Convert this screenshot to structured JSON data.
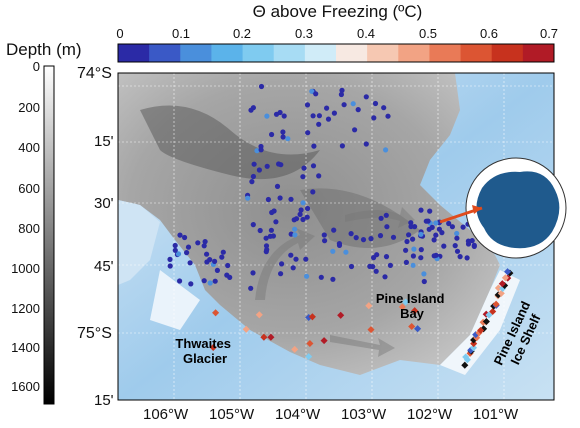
{
  "colorbar": {
    "title": "Θ above Freezing (ºC)",
    "ticks": [
      "0",
      "0.1",
      "0.2",
      "0.3",
      "0.4",
      "0.5",
      "0.6",
      "0.7"
    ],
    "colors": [
      "#2b2aa6",
      "#3a59c6",
      "#4a8fdc",
      "#5bb3ea",
      "#7fcbf0",
      "#a7dcf4",
      "#d0ecf8",
      "#f7e9e2",
      "#f6c8b2",
      "#f2a384",
      "#e97a57",
      "#dc5533",
      "#c7321e",
      "#b11b26"
    ]
  },
  "depthbar": {
    "title": "Depth (m)",
    "ticks": [
      "0",
      "200",
      "400",
      "600",
      "800",
      "1000",
      "1200",
      "1400",
      "1600"
    ]
  },
  "lat_labels": [
    "74°S",
    "15'",
    "30'",
    "45'",
    "75°S",
    "15'"
  ],
  "lon_labels": [
    "106°W",
    "105°W",
    "104°W",
    "103°W",
    "102°W",
    "101°W"
  ],
  "place_labels": {
    "thwaites": "Thwaites Glacier",
    "pine_island_bay": "Pine Island Bay",
    "pine_island_ice_shelf": "Pine Island Ice Shelf"
  }
}
